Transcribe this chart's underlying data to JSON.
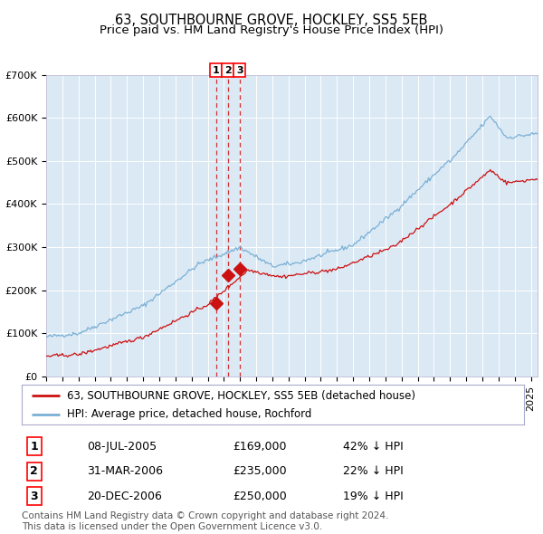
{
  "title": "63, SOUTHBOURNE GROVE, HOCKLEY, SS5 5EB",
  "subtitle": "Price paid vs. HM Land Registry's House Price Index (HPI)",
  "ylim": [
    0,
    700000
  ],
  "yticks": [
    0,
    100000,
    200000,
    300000,
    400000,
    500000,
    600000,
    700000
  ],
  "ytick_labels": [
    "£0",
    "£100K",
    "£200K",
    "£300K",
    "£400K",
    "£500K",
    "£600K",
    "£700K"
  ],
  "hpi_color": "#7ab0d4",
  "property_color": "#cc1111",
  "plot_bg_color": "#dbe9f5",
  "grid_color": "#ffffff",
  "sale_dates": [
    "2005-07-08",
    "2006-03-31",
    "2006-12-20"
  ],
  "sale_prices": [
    169000,
    235000,
    250000
  ],
  "sale_labels": [
    "1",
    "2",
    "3"
  ],
  "vline_color": "#cc1111",
  "legend_property": "63, SOUTHBOURNE GROVE, HOCKLEY, SS5 5EB (detached house)",
  "legend_hpi": "HPI: Average price, detached house, Rochford",
  "table_rows": [
    [
      "1",
      "08-JUL-2005",
      "£169,000",
      "42% ↓ HPI"
    ],
    [
      "2",
      "31-MAR-2006",
      "£235,000",
      "22% ↓ HPI"
    ],
    [
      "3",
      "20-DEC-2006",
      "£250,000",
      "19% ↓ HPI"
    ]
  ],
  "footer": "Contains HM Land Registry data © Crown copyright and database right 2024.\nThis data is licensed under the Open Government Licence v3.0.",
  "title_fontsize": 10.5,
  "subtitle_fontsize": 9.5,
  "tick_fontsize": 8,
  "legend_fontsize": 8.5,
  "table_fontsize": 9,
  "footer_fontsize": 7.5
}
